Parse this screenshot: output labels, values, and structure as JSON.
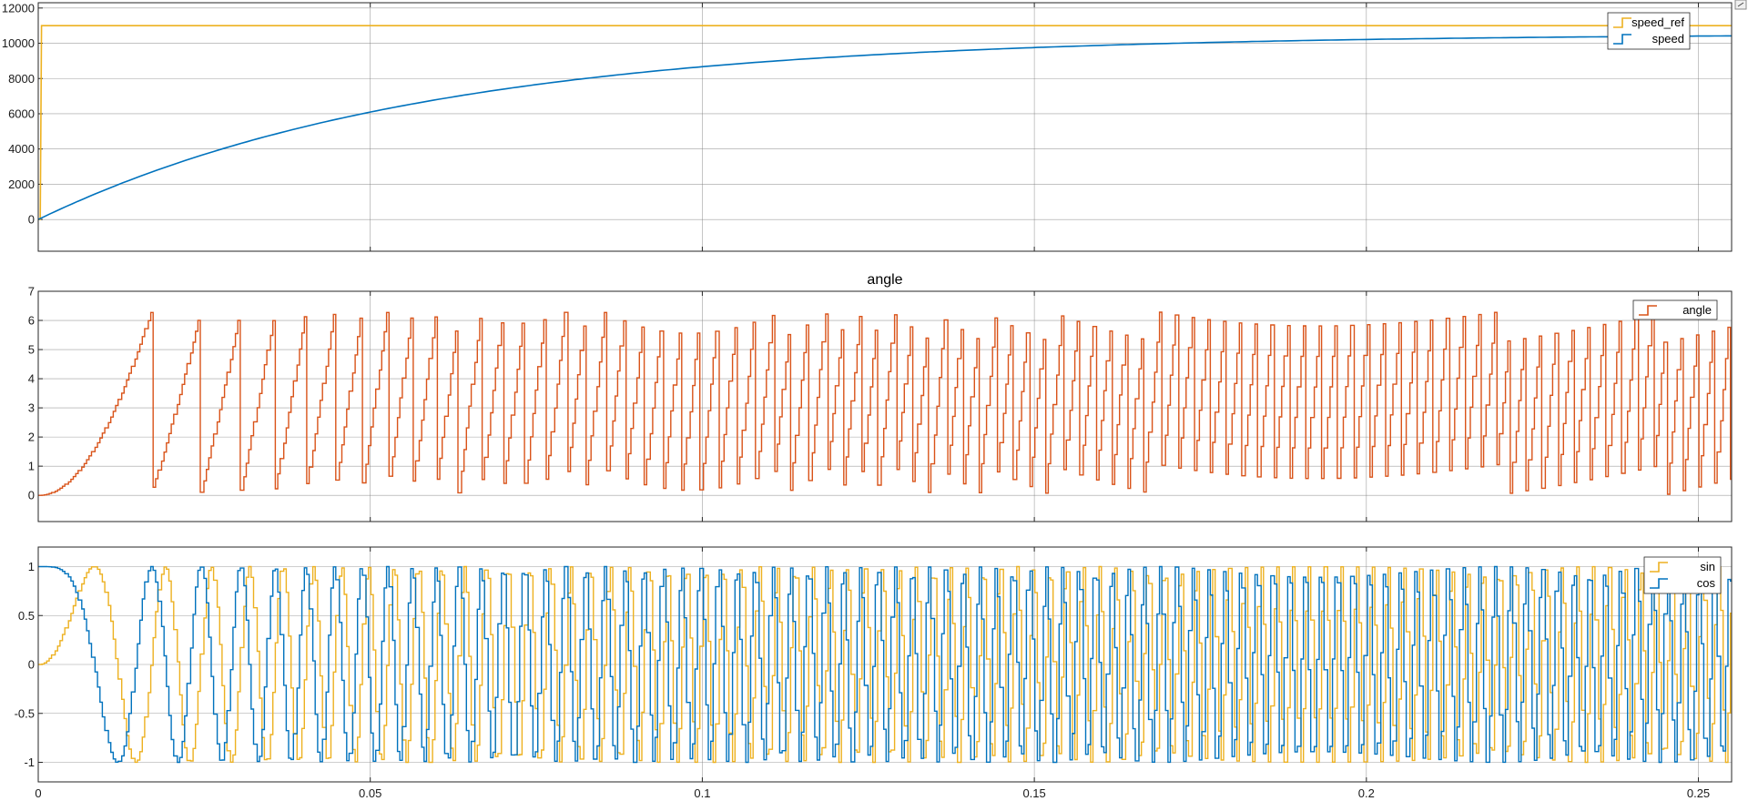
{
  "colors": {
    "yellow": "#edb120",
    "blue": "#0072bd",
    "orange": "#d95319",
    "grid": "#7f7f7f",
    "frame": "#262626"
  },
  "x_ticks": [
    "0",
    "0.05",
    "0.1",
    "0.15",
    "0.2",
    "0.25"
  ],
  "chart_data": [
    {
      "type": "line",
      "title": "",
      "xlim": [
        0,
        0.255
      ],
      "ylim": [
        -1800,
        12300
      ],
      "y_ticks": [
        "0",
        "2000",
        "4000",
        "6000",
        "8000",
        "10000",
        "12000"
      ],
      "grid": true,
      "legend_position": "top-right",
      "series": [
        {
          "name": "speed_ref",
          "color": "#edb120",
          "x": [
            0,
            0.0003,
            0.0005,
            0.0007,
            0.255
          ],
          "y": [
            0,
            0,
            11000,
            11000,
            11000
          ],
          "note_shape": "step"
        },
        {
          "name": "speed",
          "color": "#0072bd",
          "model": "first-order rise",
          "x": [
            0,
            0.05,
            0.1,
            0.15,
            0.2,
            0.255
          ],
          "y": [
            0,
            4500,
            8200,
            9600,
            10200,
            10450
          ]
        }
      ]
    },
    {
      "type": "line",
      "title": "angle",
      "xlim": [
        0,
        0.255
      ],
      "ylim": [
        -0.9,
        7
      ],
      "y_ticks": [
        "0",
        "1",
        "2",
        "3",
        "4",
        "5",
        "6",
        "7"
      ],
      "grid": true,
      "legend_position": "top-right",
      "series": [
        {
          "name": "angle",
          "color": "#d95319",
          "wrap_period": 6.2832,
          "range": [
            0,
            6.2832
          ]
        }
      ]
    },
    {
      "type": "line",
      "title": "",
      "xlim": [
        0,
        0.255
      ],
      "ylim": [
        -1.2,
        1.2
      ],
      "y_ticks": [
        "-1",
        "-0.5",
        "0",
        "0.5",
        "1"
      ],
      "grid": true,
      "legend_position": "top-right",
      "series": [
        {
          "name": "sin",
          "color": "#edb120",
          "range": [
            -1,
            1
          ]
        },
        {
          "name": "cos",
          "color": "#0072bd",
          "range": [
            -1,
            1
          ]
        }
      ]
    }
  ]
}
